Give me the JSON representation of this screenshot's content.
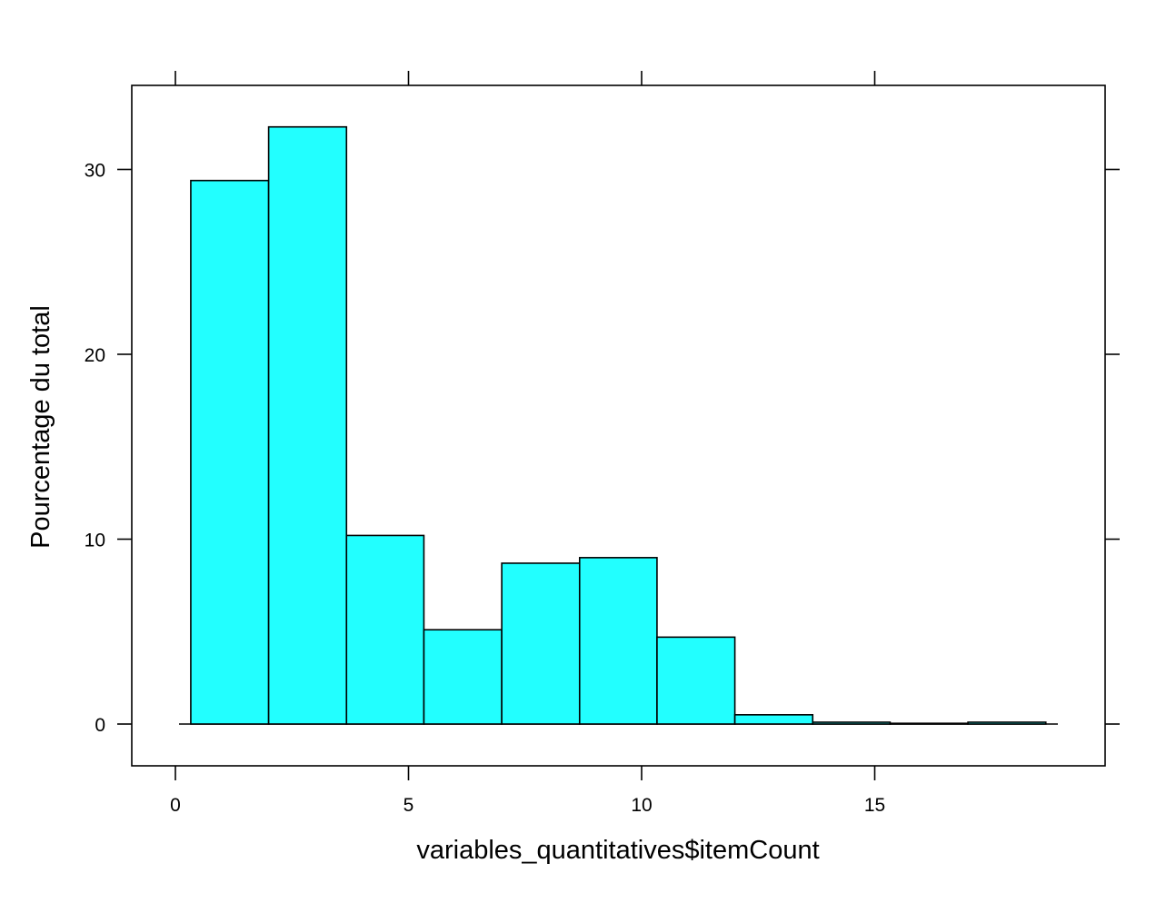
{
  "chart_data": {
    "type": "bar",
    "subtype": "histogram",
    "title": "",
    "xlabel": "variables_quantitatives$itemCount",
    "ylabel": "Pourcentage du total",
    "bins": [
      {
        "x0": 0.33,
        "x1": 2.0,
        "value": 29.4
      },
      {
        "x0": 2.0,
        "x1": 3.67,
        "value": 32.3
      },
      {
        "x0": 3.67,
        "x1": 5.33,
        "value": 10.2
      },
      {
        "x0": 5.33,
        "x1": 7.0,
        "value": 5.1
      },
      {
        "x0": 7.0,
        "x1": 8.67,
        "value": 8.7
      },
      {
        "x0": 8.67,
        "x1": 10.33,
        "value": 9.0
      },
      {
        "x0": 10.33,
        "x1": 12.0,
        "value": 4.7
      },
      {
        "x0": 12.0,
        "x1": 13.67,
        "value": 0.5
      },
      {
        "x0": 13.67,
        "x1": 15.33,
        "value": 0.1
      },
      {
        "x0": 15.33,
        "x1": 17.0,
        "value": 0.0
      },
      {
        "x0": 17.0,
        "x1": 18.67,
        "value": 0.1
      }
    ],
    "xlim": [
      -1.5,
      33.5
    ],
    "xlim_comment": "",
    "x_range": [
      -1.5,
      19.4
    ],
    "y_range": [
      -2.3,
      34.6
    ],
    "xticks": [
      "0",
      "5",
      "10",
      "15"
    ],
    "yticks": [
      "0",
      "10",
      "20",
      "30"
    ],
    "bar_color": "#22FFFF",
    "edge_color": "#000000",
    "grid": false,
    "legend": "none"
  }
}
